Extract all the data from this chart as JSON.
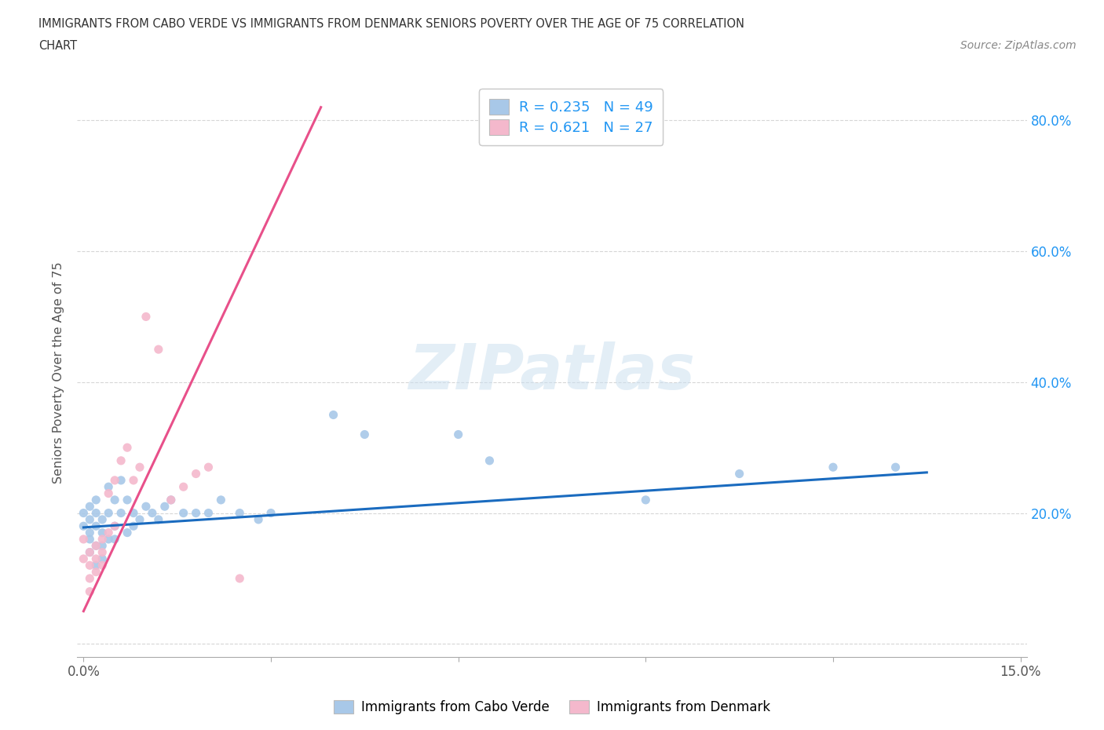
{
  "title_line1": "IMMIGRANTS FROM CABO VERDE VS IMMIGRANTS FROM DENMARK SENIORS POVERTY OVER THE AGE OF 75 CORRELATION",
  "title_line2": "CHART",
  "source_text": "Source: ZipAtlas.com",
  "ylabel": "Seniors Poverty Over the Age of 75",
  "xlim": [
    -0.001,
    0.151
  ],
  "ylim": [
    -0.02,
    0.85
  ],
  "x_tick_positions": [
    0.0,
    0.03,
    0.06,
    0.09,
    0.12,
    0.15
  ],
  "x_tick_labels": [
    "0.0%",
    "",
    "",
    "",
    "",
    "15.0%"
  ],
  "y_tick_positions": [
    0.0,
    0.2,
    0.4,
    0.6,
    0.8
  ],
  "y_tick_labels_right": [
    "",
    "20.0%",
    "40.0%",
    "60.0%",
    "80.0%"
  ],
  "cabo_verde_color": "#a8c8e8",
  "denmark_color": "#f4b8cc",
  "cabo_verde_line_color": "#1a6bbf",
  "denmark_line_color": "#e8508a",
  "R_cabo_verde": 0.235,
  "N_cabo_verde": 49,
  "R_denmark": 0.621,
  "N_denmark": 27,
  "watermark_text": "ZIPatlas",
  "legend_label_1": "Immigrants from Cabo Verde",
  "legend_label_2": "Immigrants from Denmark",
  "cabo_verde_x": [
    0.0,
    0.0,
    0.001,
    0.001,
    0.001,
    0.001,
    0.001,
    0.002,
    0.002,
    0.002,
    0.002,
    0.002,
    0.003,
    0.003,
    0.003,
    0.003,
    0.004,
    0.004,
    0.004,
    0.005,
    0.005,
    0.005,
    0.006,
    0.006,
    0.007,
    0.007,
    0.008,
    0.008,
    0.009,
    0.01,
    0.011,
    0.012,
    0.013,
    0.014,
    0.016,
    0.018,
    0.02,
    0.022,
    0.025,
    0.028,
    0.03,
    0.04,
    0.045,
    0.06,
    0.065,
    0.09,
    0.105,
    0.12,
    0.13
  ],
  "cabo_verde_y": [
    0.18,
    0.2,
    0.16,
    0.19,
    0.21,
    0.14,
    0.17,
    0.15,
    0.18,
    0.2,
    0.12,
    0.22,
    0.17,
    0.15,
    0.19,
    0.13,
    0.16,
    0.2,
    0.24,
    0.18,
    0.22,
    0.16,
    0.25,
    0.2,
    0.22,
    0.17,
    0.2,
    0.18,
    0.19,
    0.21,
    0.2,
    0.19,
    0.21,
    0.22,
    0.2,
    0.2,
    0.2,
    0.22,
    0.2,
    0.19,
    0.2,
    0.35,
    0.32,
    0.32,
    0.28,
    0.22,
    0.26,
    0.27,
    0.27
  ],
  "denmark_x": [
    0.0,
    0.0,
    0.001,
    0.001,
    0.001,
    0.001,
    0.002,
    0.002,
    0.002,
    0.003,
    0.003,
    0.003,
    0.004,
    0.004,
    0.005,
    0.005,
    0.006,
    0.007,
    0.008,
    0.009,
    0.01,
    0.012,
    0.014,
    0.016,
    0.018,
    0.02,
    0.025
  ],
  "denmark_y": [
    0.13,
    0.16,
    0.14,
    0.12,
    0.1,
    0.08,
    0.15,
    0.13,
    0.11,
    0.16,
    0.14,
    0.12,
    0.17,
    0.23,
    0.18,
    0.25,
    0.28,
    0.3,
    0.25,
    0.27,
    0.5,
    0.45,
    0.22,
    0.24,
    0.26,
    0.27,
    0.1
  ],
  "denmark_line_x0": 0.0,
  "denmark_line_y0": 0.05,
  "denmark_line_x1": 0.038,
  "denmark_line_y1": 0.82,
  "cabo_line_x0": 0.0,
  "cabo_line_y0": 0.178,
  "cabo_line_x1": 0.135,
  "cabo_line_y1": 0.262
}
